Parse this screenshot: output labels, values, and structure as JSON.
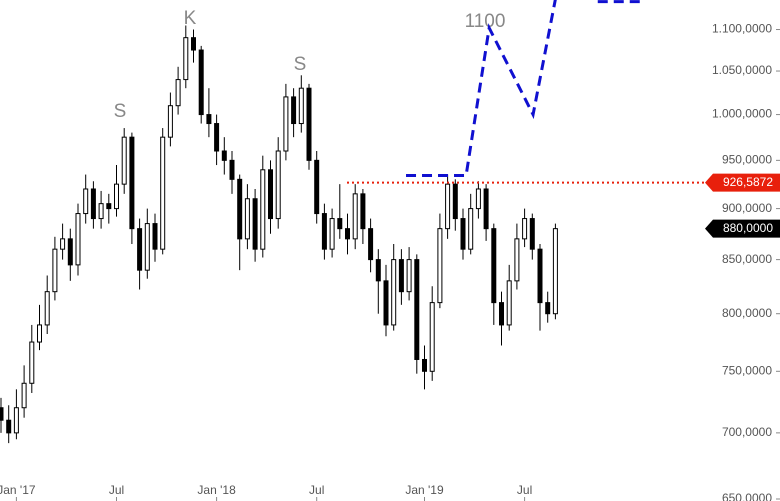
{
  "chart_data": {
    "type": "candlestick",
    "categories": [
      null,
      null,
      "Jan '17",
      null,
      null,
      null,
      null,
      null,
      null,
      null,
      null,
      null,
      null,
      null,
      null,
      "Jul",
      null,
      null,
      null,
      null,
      null,
      null,
      null,
      null,
      null,
      null,
      null,
      null,
      "Jan '18",
      null,
      null,
      null,
      null,
      null,
      null,
      null,
      null,
      null,
      null,
      null,
      null,
      "Jul",
      null,
      null,
      null,
      null,
      null,
      null,
      null,
      null,
      null,
      null,
      null,
      null,
      null,
      "Jan '19",
      null,
      null,
      null,
      null,
      null,
      null,
      null,
      null,
      null,
      null,
      null,
      null,
      "Jul",
      null,
      null,
      null,
      null
    ],
    "open": [
      720,
      710,
      700,
      720,
      740,
      775,
      790,
      820,
      860,
      870,
      845,
      895,
      920,
      890,
      905,
      900,
      925,
      975,
      880,
      840,
      885,
      860,
      975,
      1010,
      1040,
      1090,
      1075,
      1000,
      990,
      960,
      950,
      930,
      870,
      910,
      860,
      940,
      890,
      960,
      1020,
      990,
      1030,
      950,
      895,
      860,
      890,
      880,
      870,
      915,
      880,
      850,
      830,
      790,
      850,
      820,
      850,
      760,
      750,
      810,
      880,
      925,
      890,
      860,
      900,
      920,
      880,
      810,
      790,
      830,
      870,
      890,
      860,
      810,
      800
    ],
    "high": [
      728,
      722,
      735,
      755,
      790,
      808,
      835,
      872,
      885,
      880,
      905,
      935,
      928,
      918,
      915,
      945,
      985,
      980,
      890,
      900,
      895,
      985,
      1025,
      1055,
      1105,
      1100,
      1080,
      1030,
      1000,
      975,
      960,
      935,
      925,
      920,
      955,
      950,
      975,
      1035,
      1030,
      1045,
      1035,
      960,
      905,
      900,
      925,
      895,
      925,
      920,
      890,
      860,
      845,
      865,
      860,
      862,
      855,
      772,
      825,
      895,
      935,
      930,
      900,
      915,
      928,
      925,
      885,
      820,
      845,
      885,
      900,
      895,
      865,
      820,
      885
    ],
    "low": [
      700,
      692,
      695,
      712,
      732,
      768,
      782,
      812,
      850,
      830,
      835,
      885,
      880,
      880,
      885,
      892,
      915,
      865,
      822,
      832,
      848,
      855,
      965,
      1000,
      1030,
      1060,
      990,
      975,
      945,
      935,
      915,
      840,
      860,
      848,
      852,
      875,
      880,
      950,
      975,
      980,
      940,
      885,
      850,
      852,
      870,
      855,
      860,
      865,
      838,
      800,
      780,
      785,
      808,
      812,
      748,
      735,
      742,
      805,
      870,
      878,
      850,
      855,
      890,
      868,
      790,
      772,
      785,
      822,
      862,
      850,
      785,
      792,
      795
    ],
    "close": [
      710,
      700,
      720,
      740,
      775,
      790,
      820,
      860,
      870,
      845,
      895,
      920,
      890,
      905,
      900,
      925,
      975,
      880,
      840,
      885,
      860,
      975,
      1010,
      1040,
      1090,
      1075,
      1000,
      990,
      960,
      950,
      930,
      870,
      910,
      860,
      940,
      890,
      960,
      1020,
      990,
      1030,
      950,
      895,
      860,
      890,
      880,
      870,
      915,
      880,
      850,
      830,
      790,
      850,
      820,
      850,
      760,
      750,
      810,
      880,
      925,
      890,
      860,
      900,
      920,
      880,
      810,
      790,
      830,
      870,
      890,
      860,
      810,
      800,
      880
    ],
    "ylim": [
      650,
      1137
    ],
    "log_scale": true,
    "yticks": [
      {
        "value": 650,
        "label": "650,0000"
      },
      {
        "value": 700,
        "label": "700,0000"
      },
      {
        "value": 750,
        "label": "750,0000"
      },
      {
        "value": 800,
        "label": "800,0000"
      },
      {
        "value": 850,
        "label": "850,0000"
      },
      {
        "value": 900,
        "label": "900,0000"
      },
      {
        "value": 950,
        "label": "950,0000"
      },
      {
        "value": 1000,
        "label": "1.000,0000"
      },
      {
        "value": 1050,
        "label": "1.050,0000"
      },
      {
        "value": 1100,
        "label": "1.100,0000"
      }
    ],
    "levels": [
      {
        "value": 926.5872,
        "label": "926,5872",
        "color": "#e8200c"
      },
      {
        "value": 880,
        "label": "880,0000",
        "color": "#000000"
      }
    ],
    "projection": {
      "color": "#1010d0",
      "x": [
        52.6,
        60.4,
        63.4,
        69.1,
        72.1,
        null,
        77.5,
        83.1
      ],
      "y": [
        934,
        934,
        1102,
        1000,
        1143,
        null,
        1135,
        1135
      ]
    },
    "annotations": [
      "K",
      "S",
      "S",
      "1100"
    ]
  }
}
